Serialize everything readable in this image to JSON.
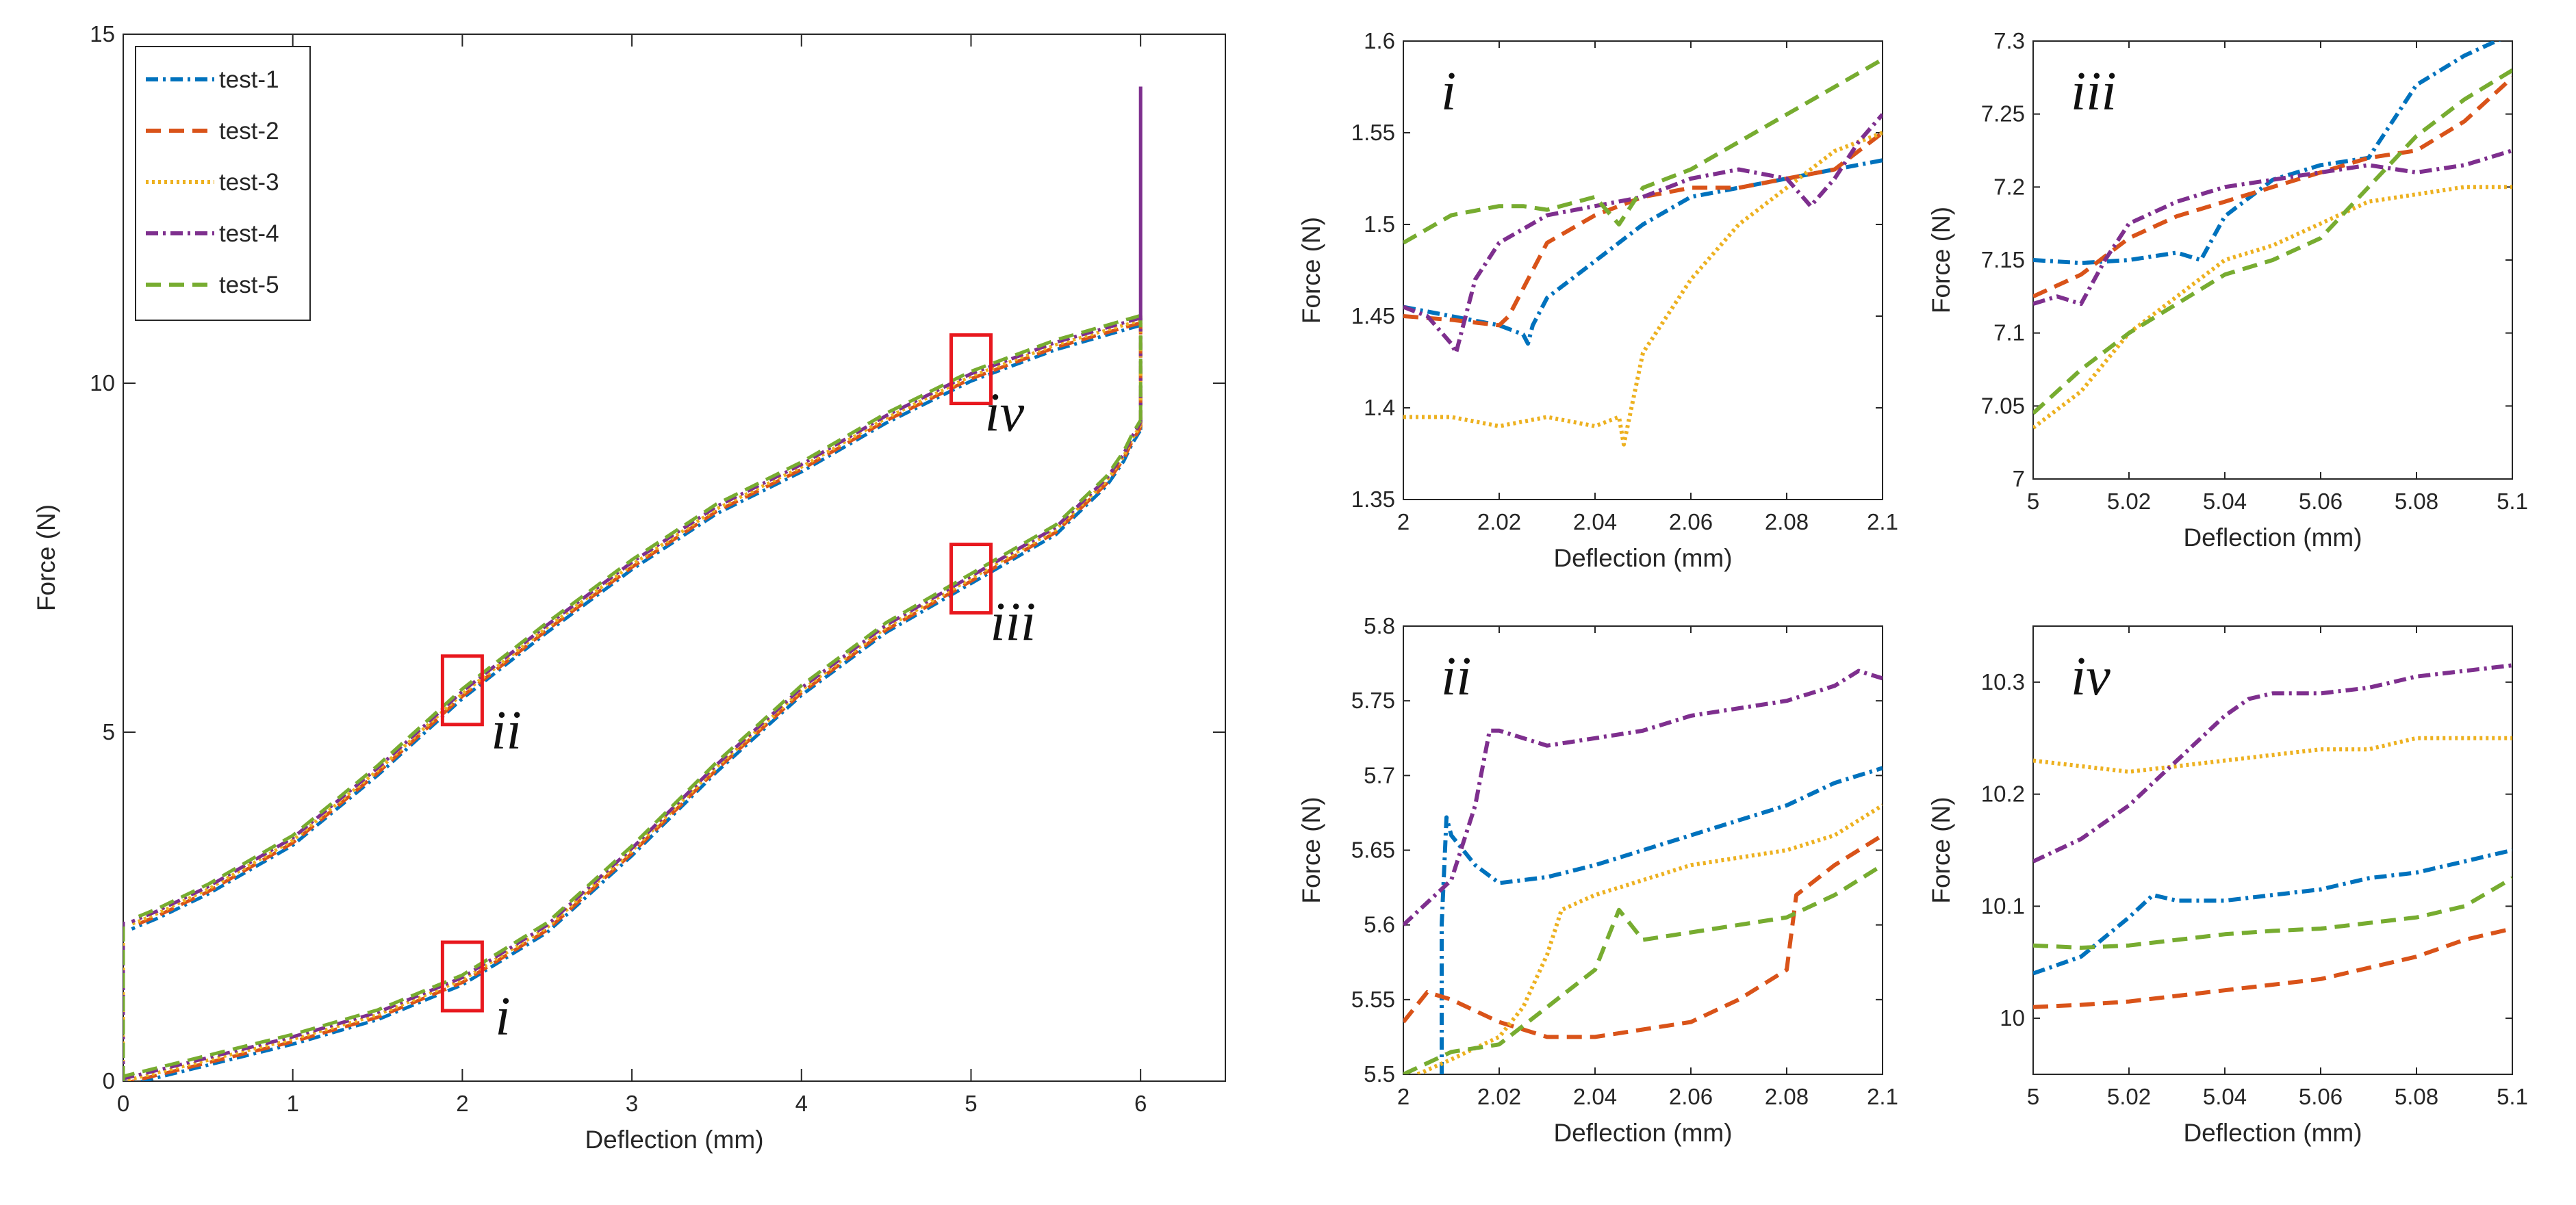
{
  "colors": {
    "test-1": "#0072bd",
    "test-2": "#d95319",
    "test-3": "#edb120",
    "test-4": "#7e2f8e",
    "test-5": "#77ac30",
    "marker_box": "#e8181e"
  },
  "chart_data": [
    {
      "id": "main",
      "type": "line",
      "xlabel": "Deflection (mm)",
      "ylabel": "Force (N)",
      "xlim": [
        0,
        6.5
      ],
      "ylim": [
        0,
        15
      ],
      "xticks": [
        0,
        1,
        2,
        3,
        4,
        5,
        6
      ],
      "yticks": [
        0,
        5,
        10,
        15
      ],
      "legend": {
        "position": "top-left",
        "entries": [
          "test-1",
          "test-2",
          "test-3",
          "test-4",
          "test-5"
        ]
      },
      "loading_curve": {
        "x": [
          0,
          0.2,
          0.5,
          0.8,
          1.0,
          1.5,
          2.0,
          2.5,
          3.0,
          3.5,
          4.0,
          4.5,
          5.0,
          5.5,
          5.8,
          5.9,
          5.95,
          6.0
        ],
        "y": [
          0,
          0.12,
          0.3,
          0.48,
          0.6,
          0.95,
          1.45,
          2.2,
          3.3,
          4.5,
          5.6,
          6.5,
          7.2,
          7.9,
          8.6,
          8.95,
          9.2,
          9.4
        ]
      },
      "unloading_curve": {
        "x": [
          6.0,
          5.5,
          5.0,
          4.5,
          4.0,
          3.5,
          3.0,
          2.5,
          2.0,
          1.5,
          1.0,
          0.5,
          0.2,
          0.05
        ],
        "y": [
          10.9,
          10.55,
          10.1,
          9.5,
          8.8,
          8.2,
          7.4,
          6.5,
          5.55,
          4.45,
          3.45,
          2.75,
          2.4,
          2.25
        ]
      },
      "markers": [
        {
          "label": "i",
          "x": 2.0,
          "y": 1.5
        },
        {
          "label": "ii",
          "x": 2.0,
          "y": 5.6
        },
        {
          "label": "iii",
          "x": 5.0,
          "y": 7.2
        },
        {
          "label": "iv",
          "x": 5.0,
          "y": 10.2
        }
      ]
    },
    {
      "id": "i",
      "type": "line",
      "panel_label": "i",
      "xlabel": "Deflection (mm)",
      "ylabel": "Force (N)",
      "xlim": [
        2,
        2.1
      ],
      "ylim": [
        1.35,
        1.6
      ],
      "xticks": [
        "2",
        "2.02",
        "2.04",
        "2.06",
        "2.08",
        "2.1"
      ],
      "yticks": [
        "1.35",
        "1.4",
        "1.45",
        "1.5",
        "1.55",
        "1.6"
      ],
      "series": [
        {
          "name": "test-1",
          "x": [
            2.0,
            2.01,
            2.02,
            2.025,
            2.026,
            2.027,
            2.03,
            2.04,
            2.05,
            2.06,
            2.07,
            2.08,
            2.09,
            2.1
          ],
          "y": [
            1.455,
            1.45,
            1.445,
            1.44,
            1.435,
            1.445,
            1.46,
            1.48,
            1.5,
            1.515,
            1.52,
            1.525,
            1.53,
            1.535
          ]
        },
        {
          "name": "test-2",
          "x": [
            2.0,
            2.01,
            2.02,
            2.022,
            2.03,
            2.04,
            2.05,
            2.06,
            2.07,
            2.08,
            2.09,
            2.095,
            2.1
          ],
          "y": [
            1.45,
            1.448,
            1.445,
            1.45,
            1.49,
            1.505,
            1.515,
            1.52,
            1.52,
            1.525,
            1.53,
            1.54,
            1.55
          ]
        },
        {
          "name": "test-3",
          "x": [
            2.0,
            2.01,
            2.02,
            2.03,
            2.04,
            2.045,
            2.046,
            2.05,
            2.06,
            2.07,
            2.08,
            2.09,
            2.1
          ],
          "y": [
            1.395,
            1.395,
            1.39,
            1.395,
            1.39,
            1.395,
            1.38,
            1.43,
            1.47,
            1.5,
            1.52,
            1.54,
            1.55
          ]
        },
        {
          "name": "test-4",
          "x": [
            2.0,
            2.005,
            2.01,
            2.011,
            2.015,
            2.02,
            2.03,
            2.04,
            2.05,
            2.06,
            2.07,
            2.08,
            2.085,
            2.09,
            2.095,
            2.1
          ],
          "y": [
            1.455,
            1.45,
            1.435,
            1.43,
            1.47,
            1.49,
            1.505,
            1.51,
            1.515,
            1.525,
            1.53,
            1.525,
            1.51,
            1.525,
            1.545,
            1.56
          ]
        },
        {
          "name": "test-5",
          "x": [
            2.0,
            2.01,
            2.02,
            2.025,
            2.03,
            2.04,
            2.045,
            2.05,
            2.06,
            2.07,
            2.08,
            2.09,
            2.1
          ],
          "y": [
            1.49,
            1.505,
            1.51,
            1.51,
            1.508,
            1.515,
            1.5,
            1.52,
            1.53,
            1.545,
            1.56,
            1.575,
            1.59
          ]
        }
      ]
    },
    {
      "id": "iii",
      "type": "line",
      "panel_label": "iii",
      "xlabel": "Deflection (mm)",
      "ylabel": "Force (N)",
      "xlim": [
        5,
        5.1
      ],
      "ylim": [
        7,
        7.3
      ],
      "xticks": [
        "5",
        "5.02",
        "5.04",
        "5.06",
        "5.08",
        "5.1"
      ],
      "yticks": [
        "7",
        "7.05",
        "7.1",
        "7.15",
        "7.2",
        "7.25",
        "7.3"
      ],
      "series": [
        {
          "name": "test-1",
          "x": [
            5.0,
            5.01,
            5.02,
            5.03,
            5.035,
            5.04,
            5.05,
            5.06,
            5.07,
            5.08,
            5.09,
            5.1
          ],
          "y": [
            7.15,
            7.148,
            7.15,
            7.155,
            7.15,
            7.18,
            7.205,
            7.215,
            7.22,
            7.27,
            7.29,
            7.305
          ]
        },
        {
          "name": "test-2",
          "x": [
            5.0,
            5.01,
            5.02,
            5.03,
            5.04,
            5.05,
            5.06,
            5.07,
            5.08,
            5.09,
            5.1
          ],
          "y": [
            7.125,
            7.14,
            7.165,
            7.18,
            7.19,
            7.2,
            7.21,
            7.22,
            7.225,
            7.245,
            7.275
          ]
        },
        {
          "name": "test-3",
          "x": [
            5.0,
            5.01,
            5.02,
            5.03,
            5.04,
            5.05,
            5.06,
            5.07,
            5.08,
            5.09,
            5.1
          ],
          "y": [
            7.035,
            7.06,
            7.1,
            7.125,
            7.15,
            7.16,
            7.175,
            7.19,
            7.195,
            7.2,
            7.2
          ]
        },
        {
          "name": "test-4",
          "x": [
            5.0,
            5.005,
            5.01,
            5.015,
            5.02,
            5.03,
            5.04,
            5.05,
            5.06,
            5.07,
            5.08,
            5.09,
            5.1
          ],
          "y": [
            7.12,
            7.125,
            7.12,
            7.15,
            7.175,
            7.19,
            7.2,
            7.205,
            7.21,
            7.215,
            7.21,
            7.215,
            7.225
          ]
        },
        {
          "name": "test-5",
          "x": [
            5.0,
            5.01,
            5.02,
            5.03,
            5.04,
            5.05,
            5.06,
            5.07,
            5.08,
            5.09,
            5.1
          ],
          "y": [
            7.045,
            7.075,
            7.1,
            7.12,
            7.14,
            7.15,
            7.165,
            7.2,
            7.235,
            7.26,
            7.28
          ]
        }
      ]
    },
    {
      "id": "ii",
      "type": "line",
      "panel_label": "ii",
      "xlabel": "Deflection (mm)",
      "ylabel": "Force (N)",
      "xlim": [
        2,
        2.1
      ],
      "ylim": [
        5.5,
        5.8
      ],
      "xticks": [
        "2",
        "2.02",
        "2.04",
        "2.06",
        "2.08",
        "2.1"
      ],
      "yticks": [
        "5.5",
        "5.55",
        "5.6",
        "5.65",
        "5.7",
        "5.75",
        "5.8"
      ],
      "series": [
        {
          "name": "test-1",
          "x": [
            2.008,
            2.008,
            2.009,
            2.01,
            2.015,
            2.02,
            2.03,
            2.04,
            2.05,
            2.06,
            2.07,
            2.08,
            2.09,
            2.1
          ],
          "y": [
            5.5,
            5.6,
            5.672,
            5.66,
            5.64,
            5.628,
            5.632,
            5.64,
            5.65,
            5.66,
            5.67,
            5.68,
            5.695,
            5.705
          ]
        },
        {
          "name": "test-2",
          "x": [
            2.0,
            2.005,
            2.01,
            2.02,
            2.03,
            2.04,
            2.05,
            2.06,
            2.07,
            2.075,
            2.08,
            2.082,
            2.09,
            2.1
          ],
          "y": [
            5.535,
            5.555,
            5.55,
            5.535,
            5.525,
            5.525,
            5.53,
            5.535,
            5.55,
            5.56,
            5.57,
            5.62,
            5.64,
            5.66
          ]
        },
        {
          "name": "test-3",
          "x": [
            2.003,
            2.01,
            2.02,
            2.025,
            2.03,
            2.033,
            2.04,
            2.05,
            2.06,
            2.07,
            2.08,
            2.09,
            2.1
          ],
          "y": [
            5.5,
            5.51,
            5.525,
            5.545,
            5.58,
            5.61,
            5.62,
            5.63,
            5.64,
            5.645,
            5.65,
            5.66,
            5.68
          ]
        },
        {
          "name": "test-4",
          "x": [
            2.0,
            2.01,
            2.015,
            2.018,
            2.02,
            2.03,
            2.04,
            2.05,
            2.06,
            2.07,
            2.08,
            2.09,
            2.095,
            2.1
          ],
          "y": [
            5.6,
            5.63,
            5.68,
            5.73,
            5.73,
            5.72,
            5.725,
            5.73,
            5.74,
            5.745,
            5.75,
            5.76,
            5.77,
            5.765
          ]
        },
        {
          "name": "test-5",
          "x": [
            2.0,
            2.01,
            2.02,
            2.03,
            2.04,
            2.045,
            2.05,
            2.06,
            2.07,
            2.08,
            2.09,
            2.1
          ],
          "y": [
            5.5,
            5.515,
            5.52,
            5.545,
            5.57,
            5.61,
            5.59,
            5.595,
            5.6,
            5.605,
            5.62,
            5.64
          ]
        }
      ]
    },
    {
      "id": "iv",
      "type": "line",
      "panel_label": "iv",
      "xlabel": "Deflection (mm)",
      "ylabel": "Force (N)",
      "xlim": [
        5,
        5.1
      ],
      "ylim": [
        9.95,
        10.35
      ],
      "xticks": [
        "5",
        "5.02",
        "5.04",
        "5.06",
        "5.08",
        "5.1"
      ],
      "yticks": [
        "10",
        "10.1",
        "10.2",
        "10.3"
      ],
      "series": [
        {
          "name": "test-1",
          "x": [
            5.0,
            5.01,
            5.02,
            5.025,
            5.03,
            5.04,
            5.05,
            5.06,
            5.07,
            5.08,
            5.09,
            5.1
          ],
          "y": [
            10.04,
            10.055,
            10.09,
            10.11,
            10.105,
            10.105,
            10.11,
            10.115,
            10.125,
            10.13,
            10.14,
            10.15
          ]
        },
        {
          "name": "test-2",
          "x": [
            5.0,
            5.01,
            5.02,
            5.03,
            5.04,
            5.05,
            5.06,
            5.07,
            5.08,
            5.09,
            5.1
          ],
          "y": [
            10.01,
            10.012,
            10.015,
            10.02,
            10.025,
            10.03,
            10.035,
            10.045,
            10.055,
            10.07,
            10.08
          ]
        },
        {
          "name": "test-3",
          "x": [
            5.0,
            5.01,
            5.02,
            5.03,
            5.04,
            5.05,
            5.06,
            5.07,
            5.08,
            5.09,
            5.1
          ],
          "y": [
            10.23,
            10.225,
            10.22,
            10.225,
            10.23,
            10.235,
            10.24,
            10.24,
            10.25,
            10.25,
            10.25
          ]
        },
        {
          "name": "test-4",
          "x": [
            5.0,
            5.01,
            5.02,
            5.03,
            5.04,
            5.045,
            5.05,
            5.06,
            5.07,
            5.08,
            5.09,
            5.1
          ],
          "y": [
            10.14,
            10.16,
            10.19,
            10.23,
            10.27,
            10.285,
            10.29,
            10.29,
            10.295,
            10.305,
            10.31,
            10.315
          ]
        },
        {
          "name": "test-5",
          "x": [
            5.0,
            5.01,
            5.02,
            5.03,
            5.04,
            5.05,
            5.06,
            5.07,
            5.08,
            5.09,
            5.1
          ],
          "y": [
            10.065,
            10.063,
            10.065,
            10.07,
            10.075,
            10.078,
            10.08,
            10.085,
            10.09,
            10.1,
            10.125
          ]
        }
      ]
    }
  ]
}
